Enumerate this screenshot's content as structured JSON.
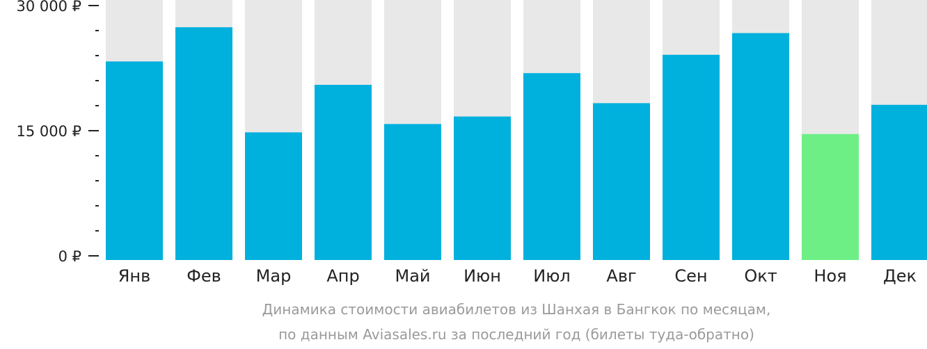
{
  "chart_data": {
    "type": "bar",
    "categories": [
      "Янв",
      "Фев",
      "Мар",
      "Апр",
      "Май",
      "Июн",
      "Июл",
      "Авг",
      "Сен",
      "Окт",
      "Ноя",
      "Дек"
    ],
    "values": [
      23300,
      27400,
      14800,
      20500,
      15800,
      16700,
      21900,
      18300,
      24100,
      26700,
      14600,
      18100
    ],
    "highlight_index": 10,
    "ylim": [
      0,
      30000
    ],
    "yticks": [
      {
        "value": 0,
        "label": "0 ₽"
      },
      {
        "value": 15000,
        "label": "15 000 ₽"
      },
      {
        "value": 30000,
        "label": "30 000 ₽"
      }
    ],
    "minor_tick_step": 3000,
    "caption_lines": [
      "Динамика стоимости авиабилетов из Шанхая в Бангкок по месяцам,",
      "по данным Aviasales.ru за последний год (билеты туда-обратно)"
    ],
    "colors": {
      "bar": "#00b0dd",
      "highlight": "#6def86",
      "track": "#e8e8e8",
      "axis": "#222222",
      "caption": "#9a9a9a"
    }
  }
}
